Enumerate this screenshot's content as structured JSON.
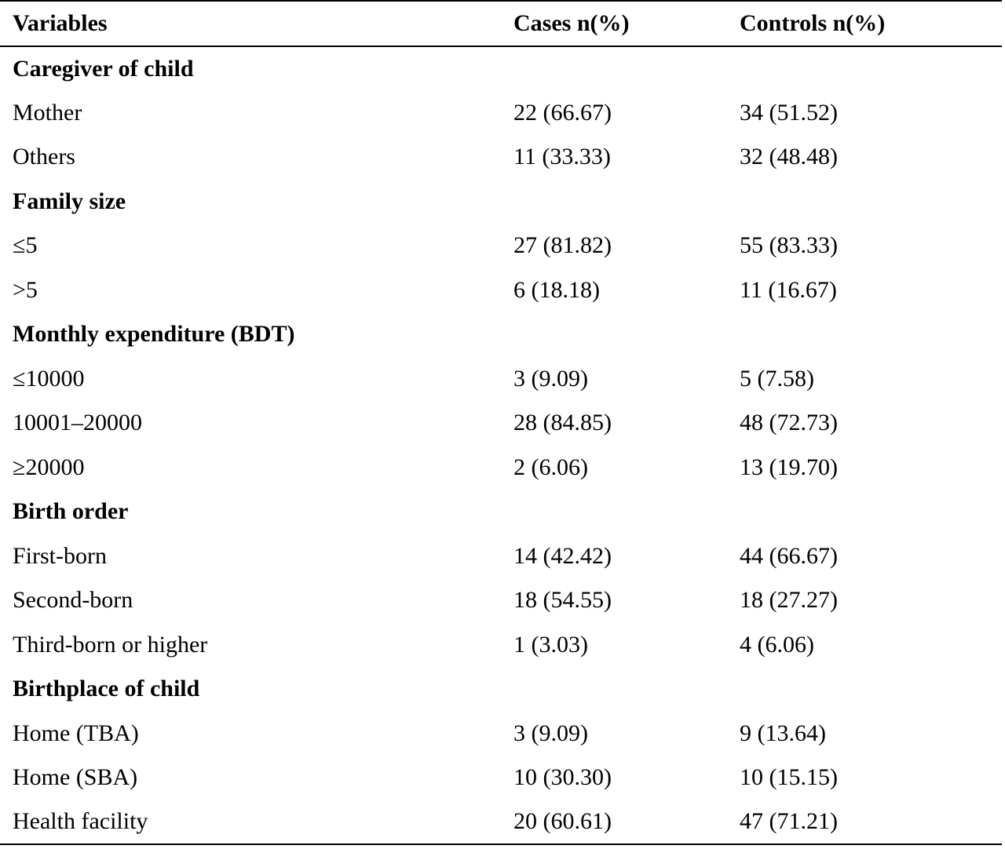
{
  "table": {
    "headers": [
      "Variables",
      "Cases n(%)",
      "Controls n(%)"
    ],
    "rows": [
      {
        "type": "section",
        "label": "Caregiver of child"
      },
      {
        "type": "data",
        "label": "Mother",
        "cases": "22 (66.67)",
        "controls": "34 (51.52)"
      },
      {
        "type": "data",
        "label": "Others",
        "cases": "11 (33.33)",
        "controls": "32 (48.48)"
      },
      {
        "type": "section",
        "label": "Family size"
      },
      {
        "type": "data",
        "label": "≤5",
        "cases": "27 (81.82)",
        "controls": "55 (83.33)"
      },
      {
        "type": "data",
        "label": ">5",
        "cases": "6 (18.18)",
        "controls": "11 (16.67)"
      },
      {
        "type": "section",
        "label": "Monthly expenditure (BDT)"
      },
      {
        "type": "data",
        "label": "≤10000",
        "cases": "3 (9.09)",
        "controls": "5 (7.58)"
      },
      {
        "type": "data",
        "label": "10001–20000",
        "cases": "28 (84.85)",
        "controls": "48 (72.73)"
      },
      {
        "type": "data",
        "label": "≥20000",
        "cases": "2 (6.06)",
        "controls": "13 (19.70)"
      },
      {
        "type": "section",
        "label": "Birth order"
      },
      {
        "type": "data",
        "label": "First-born",
        "cases": "14 (42.42)",
        "controls": "44 (66.67)"
      },
      {
        "type": "data",
        "label": "Second-born",
        "cases": "18 (54.55)",
        "controls": "18 (27.27)"
      },
      {
        "type": "data",
        "label": "Third-born or higher",
        "cases": "1 (3.03)",
        "controls": "4 (6.06)"
      },
      {
        "type": "section",
        "label": "Birthplace of child"
      },
      {
        "type": "data",
        "label": "Home (TBA)",
        "cases": "3 (9.09)",
        "controls": "9 (13.64)"
      },
      {
        "type": "data",
        "label": "Home (SBA)",
        "cases": "10 (30.30)",
        "controls": "10 (15.15)"
      },
      {
        "type": "data",
        "label": "Health facility",
        "cases": "20 (60.61)",
        "controls": "47 (71.21)"
      }
    ]
  }
}
